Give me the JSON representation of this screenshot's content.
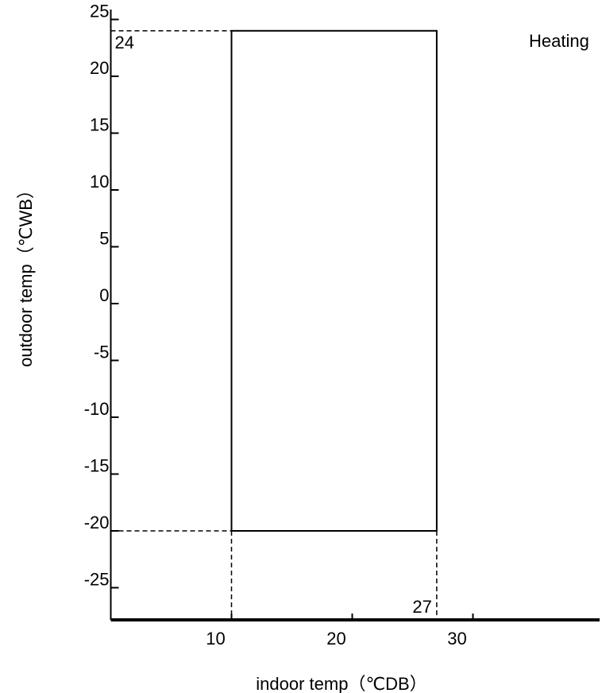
{
  "chart_data": {
    "type": "line",
    "title": "",
    "xlabel": "indoor temp（℃DB）",
    "ylabel": "outdoor temp（℃WB）",
    "xlim": [
      0,
      40
    ],
    "ylim": [
      -28,
      26
    ],
    "x_ticks": [
      10,
      20,
      30
    ],
    "y_ticks": [
      25,
      20,
      15,
      10,
      5,
      0,
      -5,
      -10,
      -15,
      -20,
      -25
    ],
    "grid": false,
    "series": [
      {
        "name": "Heating",
        "points": [
          {
            "x": 10,
            "y": -20
          },
          {
            "x": 27,
            "y": -20
          },
          {
            "x": 27,
            "y": 24
          },
          {
            "x": 10,
            "y": 24
          }
        ],
        "closed": true
      }
    ],
    "reference_lines": [
      {
        "from": {
          "x": 0,
          "y": 24
        },
        "to": {
          "x": 10,
          "y": 24
        },
        "style": "dashed"
      },
      {
        "from": {
          "x": 0,
          "y": -20
        },
        "to": {
          "x": 10,
          "y": -20
        },
        "style": "dashed"
      },
      {
        "from": {
          "x": 10,
          "y": -20
        },
        "to": {
          "x": 10,
          "y": -28
        },
        "style": "dashed"
      },
      {
        "from": {
          "x": 27,
          "y": -20
        },
        "to": {
          "x": 27,
          "y": -28
        },
        "style": "dashed"
      }
    ],
    "annotations": [
      {
        "text": "24",
        "x": 0,
        "y": 24
      },
      {
        "text": "27",
        "x": 27,
        "y": -28
      },
      {
        "text": "Heating",
        "x": 40,
        "y": 24
      }
    ]
  }
}
